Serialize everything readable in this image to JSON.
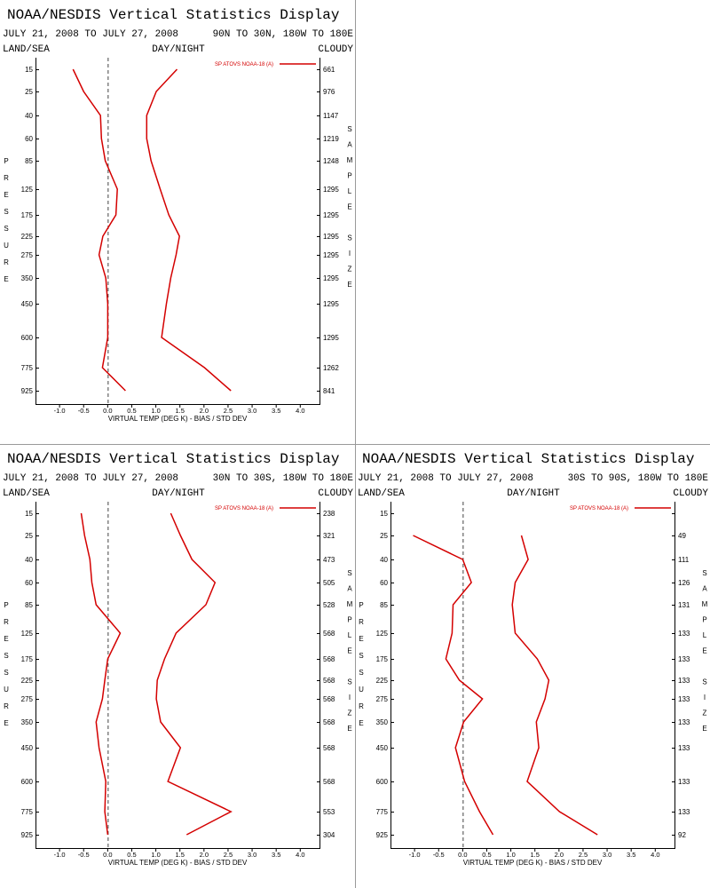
{
  "chart_data": [
    {
      "type": "line",
      "title": "NOAA/NESDIS Vertical Statistics Display",
      "subtitle": "JULY 21, 2008 TO JULY 27, 2008",
      "region": "90N TO 30N, 180W TO 180E",
      "land_sea": "LAND/SEA",
      "day_night": "DAY/NIGHT",
      "cloudy": "CLOUDY",
      "y_label": "PRESSURE",
      "y2_label": "SAMPLE SIZE",
      "x_label": "VIRTUAL TEMP (DEG K) - BIAS / STD DEV",
      "categories": [
        "15",
        "25",
        "40",
        "60",
        "85",
        "125",
        "175",
        "225",
        "275",
        "350",
        "450",
        "600",
        "775",
        "925"
      ],
      "sample_size": [
        661,
        976,
        1147,
        1219,
        1248,
        1295,
        1295,
        1295,
        1295,
        1295,
        1295,
        1295,
        1262,
        841
      ],
      "series": [
        {
          "name": "SP ATOVS NOAA-18 (A)",
          "color": "#d40000",
          "bias": [
            -0.72,
            -0.5,
            -0.15,
            -0.13,
            -0.05,
            0.2,
            0.17,
            -0.1,
            -0.18,
            -0.04,
            0.0,
            0.0,
            -0.11,
            0.37
          ],
          "std_dev": [
            1.44,
            1.01,
            0.81,
            0.81,
            0.9,
            1.09,
            1.27,
            1.49,
            1.42,
            1.31,
            1.22,
            1.12,
            2.01,
            2.56
          ]
        }
      ],
      "xlim": [
        -1.5,
        4.4
      ],
      "xticks": [
        {
          "value": -1,
          "label": "-1.0"
        },
        -0.5,
        {
          "value": 0,
          "label": "0.0"
        },
        0.5,
        {
          "value": 1,
          "label": "1.0"
        },
        1.5,
        {
          "value": 2,
          "label": "2.0"
        },
        2.5,
        {
          "value": 3,
          "label": "3.0"
        },
        3.5,
        {
          "value": 4,
          "label": "4.0"
        }
      ]
    },
    {
      "type": "line",
      "title": "NOAA/NESDIS Vertical Statistics Display",
      "subtitle": "JULY 21, 2008 TO JULY 27, 2008",
      "region": "30N TO 30S, 180W TO 180E",
      "land_sea": "LAND/SEA",
      "day_night": "DAY/NIGHT",
      "cloudy": "CLOUDY",
      "y_label": "PRESSURE",
      "y2_label": "SAMPLE SIZE",
      "x_label": "VIRTUAL TEMP (DEG K) - BIAS / STD DEV",
      "categories": [
        "15",
        "25",
        "40",
        "60",
        "85",
        "125",
        "175",
        "225",
        "275",
        "350",
        "450",
        "600",
        "775",
        "925"
      ],
      "sample_size": [
        238,
        321,
        473,
        505,
        528,
        568,
        568,
        568,
        568,
        568,
        568,
        568,
        553,
        304
      ],
      "series": [
        {
          "name": "SP ATOVS NOAA-18 (A)",
          "color": "#d40000",
          "bias": [
            -0.55,
            -0.48,
            -0.37,
            -0.33,
            -0.24,
            0.26,
            0.0,
            -0.06,
            -0.11,
            -0.24,
            -0.18,
            -0.04,
            -0.06,
            0.0
          ],
          "std_dev": [
            1.31,
            1.51,
            1.75,
            2.23,
            2.04,
            1.42,
            1.18,
            1.03,
            1.01,
            1.1,
            1.51,
            1.25,
            2.56,
            1.64
          ]
        }
      ],
      "xlim": [
        -1.5,
        4.4
      ],
      "xticks": [
        {
          "value": -1,
          "label": "-1.0"
        },
        -0.5,
        {
          "value": 0,
          "label": "0.0"
        },
        0.5,
        {
          "value": 1,
          "label": "1.0"
        },
        1.5,
        {
          "value": 2,
          "label": "2.0"
        },
        2.5,
        {
          "value": 3,
          "label": "3.0"
        },
        3.5,
        {
          "value": 4,
          "label": "4.0"
        }
      ]
    },
    {
      "type": "line",
      "title": "NOAA/NESDIS Vertical Statistics Display",
      "subtitle": "JULY 21, 2008 TO JULY 27, 2008",
      "region": "30S TO 90S, 180W TO 180E",
      "land_sea": "LAND/SEA",
      "day_night": "DAY/NIGHT",
      "cloudy": "CLOUDY",
      "y_label": "PRESSURE",
      "y2_label": "SAMPLE SIZE",
      "x_label": "VIRTUAL TEMP (DEG K) - BIAS / STD DEV",
      "categories": [
        "15",
        "25",
        "40",
        "60",
        "85",
        "125",
        "175",
        "225",
        "275",
        "350",
        "450",
        "600",
        "775",
        "925"
      ],
      "sample_size": [
        null,
        49,
        111,
        126,
        131,
        133,
        133,
        133,
        133,
        133,
        133,
        133,
        133,
        92
      ],
      "series": [
        {
          "name": "SP ATOVS NOAA-18 (A)",
          "color": "#d40000",
          "bias": [
            null,
            -1.03,
            0.0,
            0.18,
            -0.2,
            -0.22,
            -0.35,
            -0.07,
            0.41,
            0.02,
            -0.15,
            0.04,
            0.35,
            0.63
          ],
          "std_dev": [
            null,
            1.22,
            1.36,
            1.09,
            1.03,
            1.09,
            1.55,
            1.79,
            1.71,
            1.53,
            1.58,
            1.34,
            2.01,
            2.8
          ]
        }
      ],
      "xlim": [
        -1.5,
        4.4
      ],
      "xticks": [
        {
          "value": -1,
          "label": "-1.0"
        },
        -0.5,
        {
          "value": 0,
          "label": "0.0"
        },
        0.5,
        {
          "value": 1,
          "label": "1.0"
        },
        1.5,
        {
          "value": 2,
          "label": "2.0"
        },
        2.5,
        {
          "value": 3,
          "label": "3.0"
        },
        3.5,
        {
          "value": 4,
          "label": "4.0"
        }
      ]
    }
  ]
}
